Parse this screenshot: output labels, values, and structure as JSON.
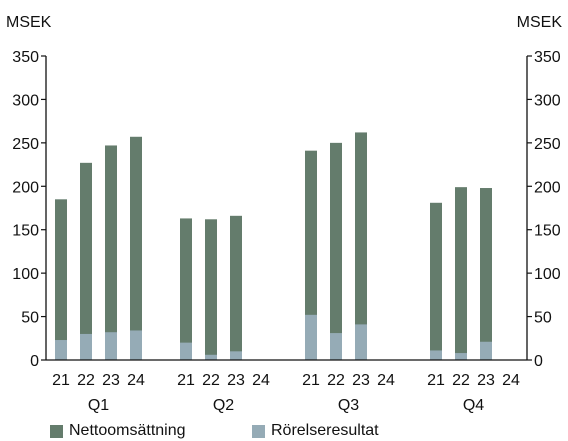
{
  "chart_data": {
    "type": "bar",
    "unit_left": "MSEK",
    "unit_right": "MSEK",
    "groups": [
      "Q1",
      "Q2",
      "Q3",
      "Q4"
    ],
    "years": [
      "21",
      "22",
      "23",
      "24"
    ],
    "ylim": [
      0,
      350
    ],
    "yticks": [
      0,
      50,
      100,
      150,
      200,
      250,
      300,
      350
    ],
    "grid": false,
    "legend_position": "bottom",
    "series": [
      {
        "name": "Nettoomsättning",
        "color": "#647c6c",
        "values": [
          [
            185,
            227,
            247,
            257
          ],
          [
            163,
            162,
            166,
            null
          ],
          [
            241,
            250,
            262,
            null
          ],
          [
            181,
            199,
            198,
            null
          ]
        ]
      },
      {
        "name": "Rörelseresultat",
        "color": "#95abb6",
        "values": [
          [
            23,
            30,
            32,
            34
          ],
          [
            20,
            6,
            10,
            null
          ],
          [
            52,
            31,
            41,
            null
          ],
          [
            11,
            8,
            21,
            null
          ]
        ]
      }
    ]
  }
}
